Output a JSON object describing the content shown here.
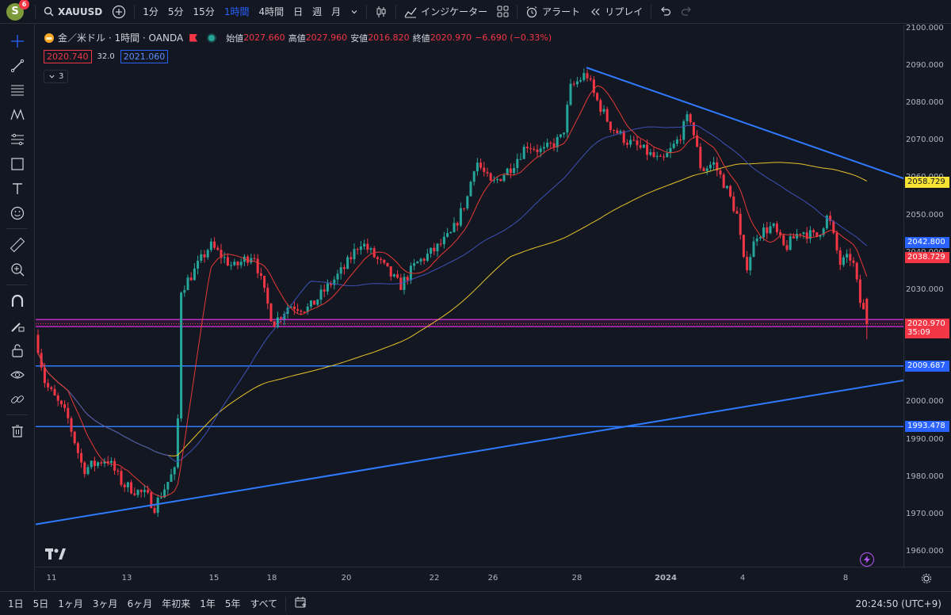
{
  "topbar": {
    "avatar_letter": "S",
    "badge": "6",
    "symbol": "XAUUSD",
    "intervals": [
      "1分",
      "5分",
      "15分",
      "1時間",
      "4時間",
      "日",
      "週",
      "月"
    ],
    "active_interval": "1時間",
    "indicators_label": "インジケーター",
    "alert_label": "アラート",
    "replay_label": "リプレイ"
  },
  "legend": {
    "title": "金／米ドル · 1時間 · OANDA",
    "open_label": "始値",
    "open": "2027.660",
    "high_label": "高値",
    "high": "2027.960",
    "low_label": "安値",
    "low": "2016.820",
    "close_label": "終値",
    "close": "2020.970",
    "change": "−6.690 (−0.33%)",
    "bid": "2020.740",
    "spread": "32.0",
    "ask": "2021.060",
    "collapsed_count": "3"
  },
  "price_axis": {
    "labels": [
      "2100.000",
      "2090.000",
      "2080.000",
      "2070.000",
      "2060.000",
      "2050.000",
      "2040.000",
      "2030.000",
      "2020.000",
      "2010.000",
      "2000.000",
      "1990.000",
      "1980.000",
      "1970.000",
      "1960.000"
    ],
    "tags": [
      {
        "price": 2058.729,
        "text": "2058.729",
        "bg": "#f7e332",
        "fg": "#131722"
      },
      {
        "price": 2042.8,
        "text": "2042.800",
        "bg": "#2962ff",
        "fg": "#ffffff"
      },
      {
        "price": 2038.729,
        "text": "2038.729",
        "bg": "#f23645",
        "fg": "#ffffff"
      },
      {
        "price": 2020.97,
        "text": "2020.970",
        "bg": "#f23645",
        "fg": "#ffffff",
        "sub": "35:09"
      },
      {
        "price": 2009.687,
        "text": "2009.687",
        "bg": "#2962ff",
        "fg": "#ffffff"
      },
      {
        "price": 1993.478,
        "text": "1993.478",
        "bg": "#2962ff",
        "fg": "#ffffff"
      }
    ]
  },
  "time_axis": {
    "labels": [
      "11",
      "13",
      "15",
      "18",
      "20",
      "22",
      "26",
      "28",
      "2024",
      "4",
      "8"
    ]
  },
  "bottombar": {
    "ranges": [
      "1日",
      "5日",
      "1ヶ月",
      "3ヶ月",
      "6ヶ月",
      "年初来",
      "1年",
      "5年",
      "すべて"
    ],
    "clock": "20:24:50 (UTC+9)"
  },
  "colors": {
    "up": "#26a69a",
    "down": "#f23645",
    "bg": "#131722",
    "ma_fast": "#e53935",
    "ma_mid": "#3f51b5",
    "ma_slow": "#e6c229",
    "trendline": "#2f7bff",
    "zone": "#c02cc0"
  },
  "chart_data": {
    "type": "candlestick",
    "symbol": "XAUUSD",
    "ylim": [
      1956,
      2101
    ],
    "x_ticks": [
      "11",
      "13",
      "15",
      "18",
      "20",
      "22",
      "26",
      "28",
      "2024",
      "4",
      "8"
    ],
    "path": [
      [
        0,
        2018
      ],
      [
        12,
        2005
      ],
      [
        40,
        1996
      ],
      [
        60,
        1982
      ],
      [
        90,
        1985
      ],
      [
        110,
        1978
      ],
      [
        140,
        1975
      ],
      [
        150,
        1972
      ],
      [
        170,
        1980
      ],
      [
        178,
        1982
      ],
      [
        183,
        2030
      ],
      [
        200,
        2035
      ],
      [
        220,
        2042
      ],
      [
        250,
        2036
      ],
      [
        275,
        2040
      ],
      [
        290,
        2028
      ],
      [
        300,
        2021
      ],
      [
        320,
        2026
      ],
      [
        345,
        2025
      ],
      [
        365,
        2030
      ],
      [
        390,
        2036
      ],
      [
        410,
        2043
      ],
      [
        440,
        2036
      ],
      [
        460,
        2031
      ],
      [
        480,
        2037
      ],
      [
        505,
        2041
      ],
      [
        525,
        2045
      ],
      [
        545,
        2055
      ],
      [
        555,
        2065
      ],
      [
        575,
        2058
      ],
      [
        600,
        2063
      ],
      [
        620,
        2069
      ],
      [
        640,
        2067
      ],
      [
        665,
        2071
      ],
      [
        675,
        2084
      ],
      [
        695,
        2088
      ],
      [
        705,
        2082
      ],
      [
        725,
        2074
      ],
      [
        745,
        2070
      ],
      [
        770,
        2067
      ],
      [
        790,
        2064
      ],
      [
        810,
        2070
      ],
      [
        825,
        2077
      ],
      [
        840,
        2062
      ],
      [
        855,
        2064
      ],
      [
        870,
        2058
      ],
      [
        885,
        2050
      ],
      [
        895,
        2035
      ],
      [
        910,
        2045
      ],
      [
        930,
        2047
      ],
      [
        945,
        2041
      ],
      [
        965,
        2046
      ],
      [
        985,
        2044
      ],
      [
        1000,
        2050
      ],
      [
        1015,
        2037
      ],
      [
        1030,
        2039
      ],
      [
        1040,
        2027
      ],
      [
        1050,
        2021
      ]
    ],
    "moving_averages": {
      "fast": "red",
      "mid": "blue",
      "slow": "yellow"
    },
    "trendlines": [
      {
        "from": [
          695,
          2089.5
        ],
        "to": [
          1100,
          2059.5
        ]
      },
      {
        "from": [
          0,
          1967.3
        ],
        "to": [
          1100,
          2006
        ]
      }
    ],
    "horizontal_lines": [
      2009.687,
      1993.478
    ],
    "zone": [
      2020.2,
      2022.1
    ]
  }
}
